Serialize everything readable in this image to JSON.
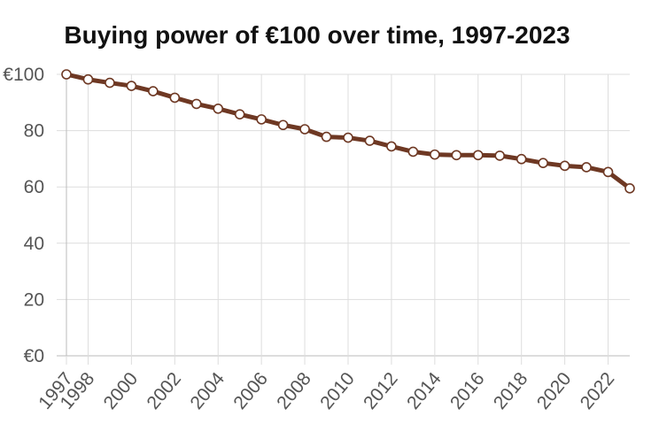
{
  "chart_data": {
    "type": "line",
    "title": "Buying power of €100 over time, 1997-2023",
    "xlabel": "",
    "ylabel": "",
    "x": [
      1997,
      1998,
      1999,
      2000,
      2001,
      2002,
      2003,
      2004,
      2005,
      2006,
      2007,
      2008,
      2009,
      2010,
      2011,
      2012,
      2013,
      2014,
      2015,
      2016,
      2017,
      2018,
      2019,
      2020,
      2021,
      2022,
      2023
    ],
    "series": [
      {
        "name": "",
        "values": [
          100,
          98.2,
          97.0,
          95.9,
          94.0,
          91.7,
          89.5,
          87.8,
          85.8,
          84.0,
          82.0,
          80.5,
          77.8,
          77.5,
          76.4,
          74.4,
          72.5,
          71.5,
          71.3,
          71.3,
          71.1,
          69.9,
          68.5,
          67.5,
          67.0,
          65.3,
          59.5
        ]
      }
    ],
    "x_ticks": [
      "1997",
      "1998",
      "2000",
      "2002",
      "2004",
      "2006",
      "2008",
      "2010",
      "2012",
      "2014",
      "2016",
      "2018",
      "2020",
      "2022"
    ],
    "y_ticks": [
      "€0",
      "20",
      "40",
      "60",
      "80",
      "€100"
    ],
    "y_tick_values": [
      0,
      20,
      40,
      60,
      80,
      100
    ],
    "ylim": [
      0,
      100
    ],
    "grid": true,
    "line_color": "#6e3823",
    "marker_fill": "#ffffff",
    "grid_color": "#dddddd",
    "axis_color": "#bbbbbb"
  }
}
